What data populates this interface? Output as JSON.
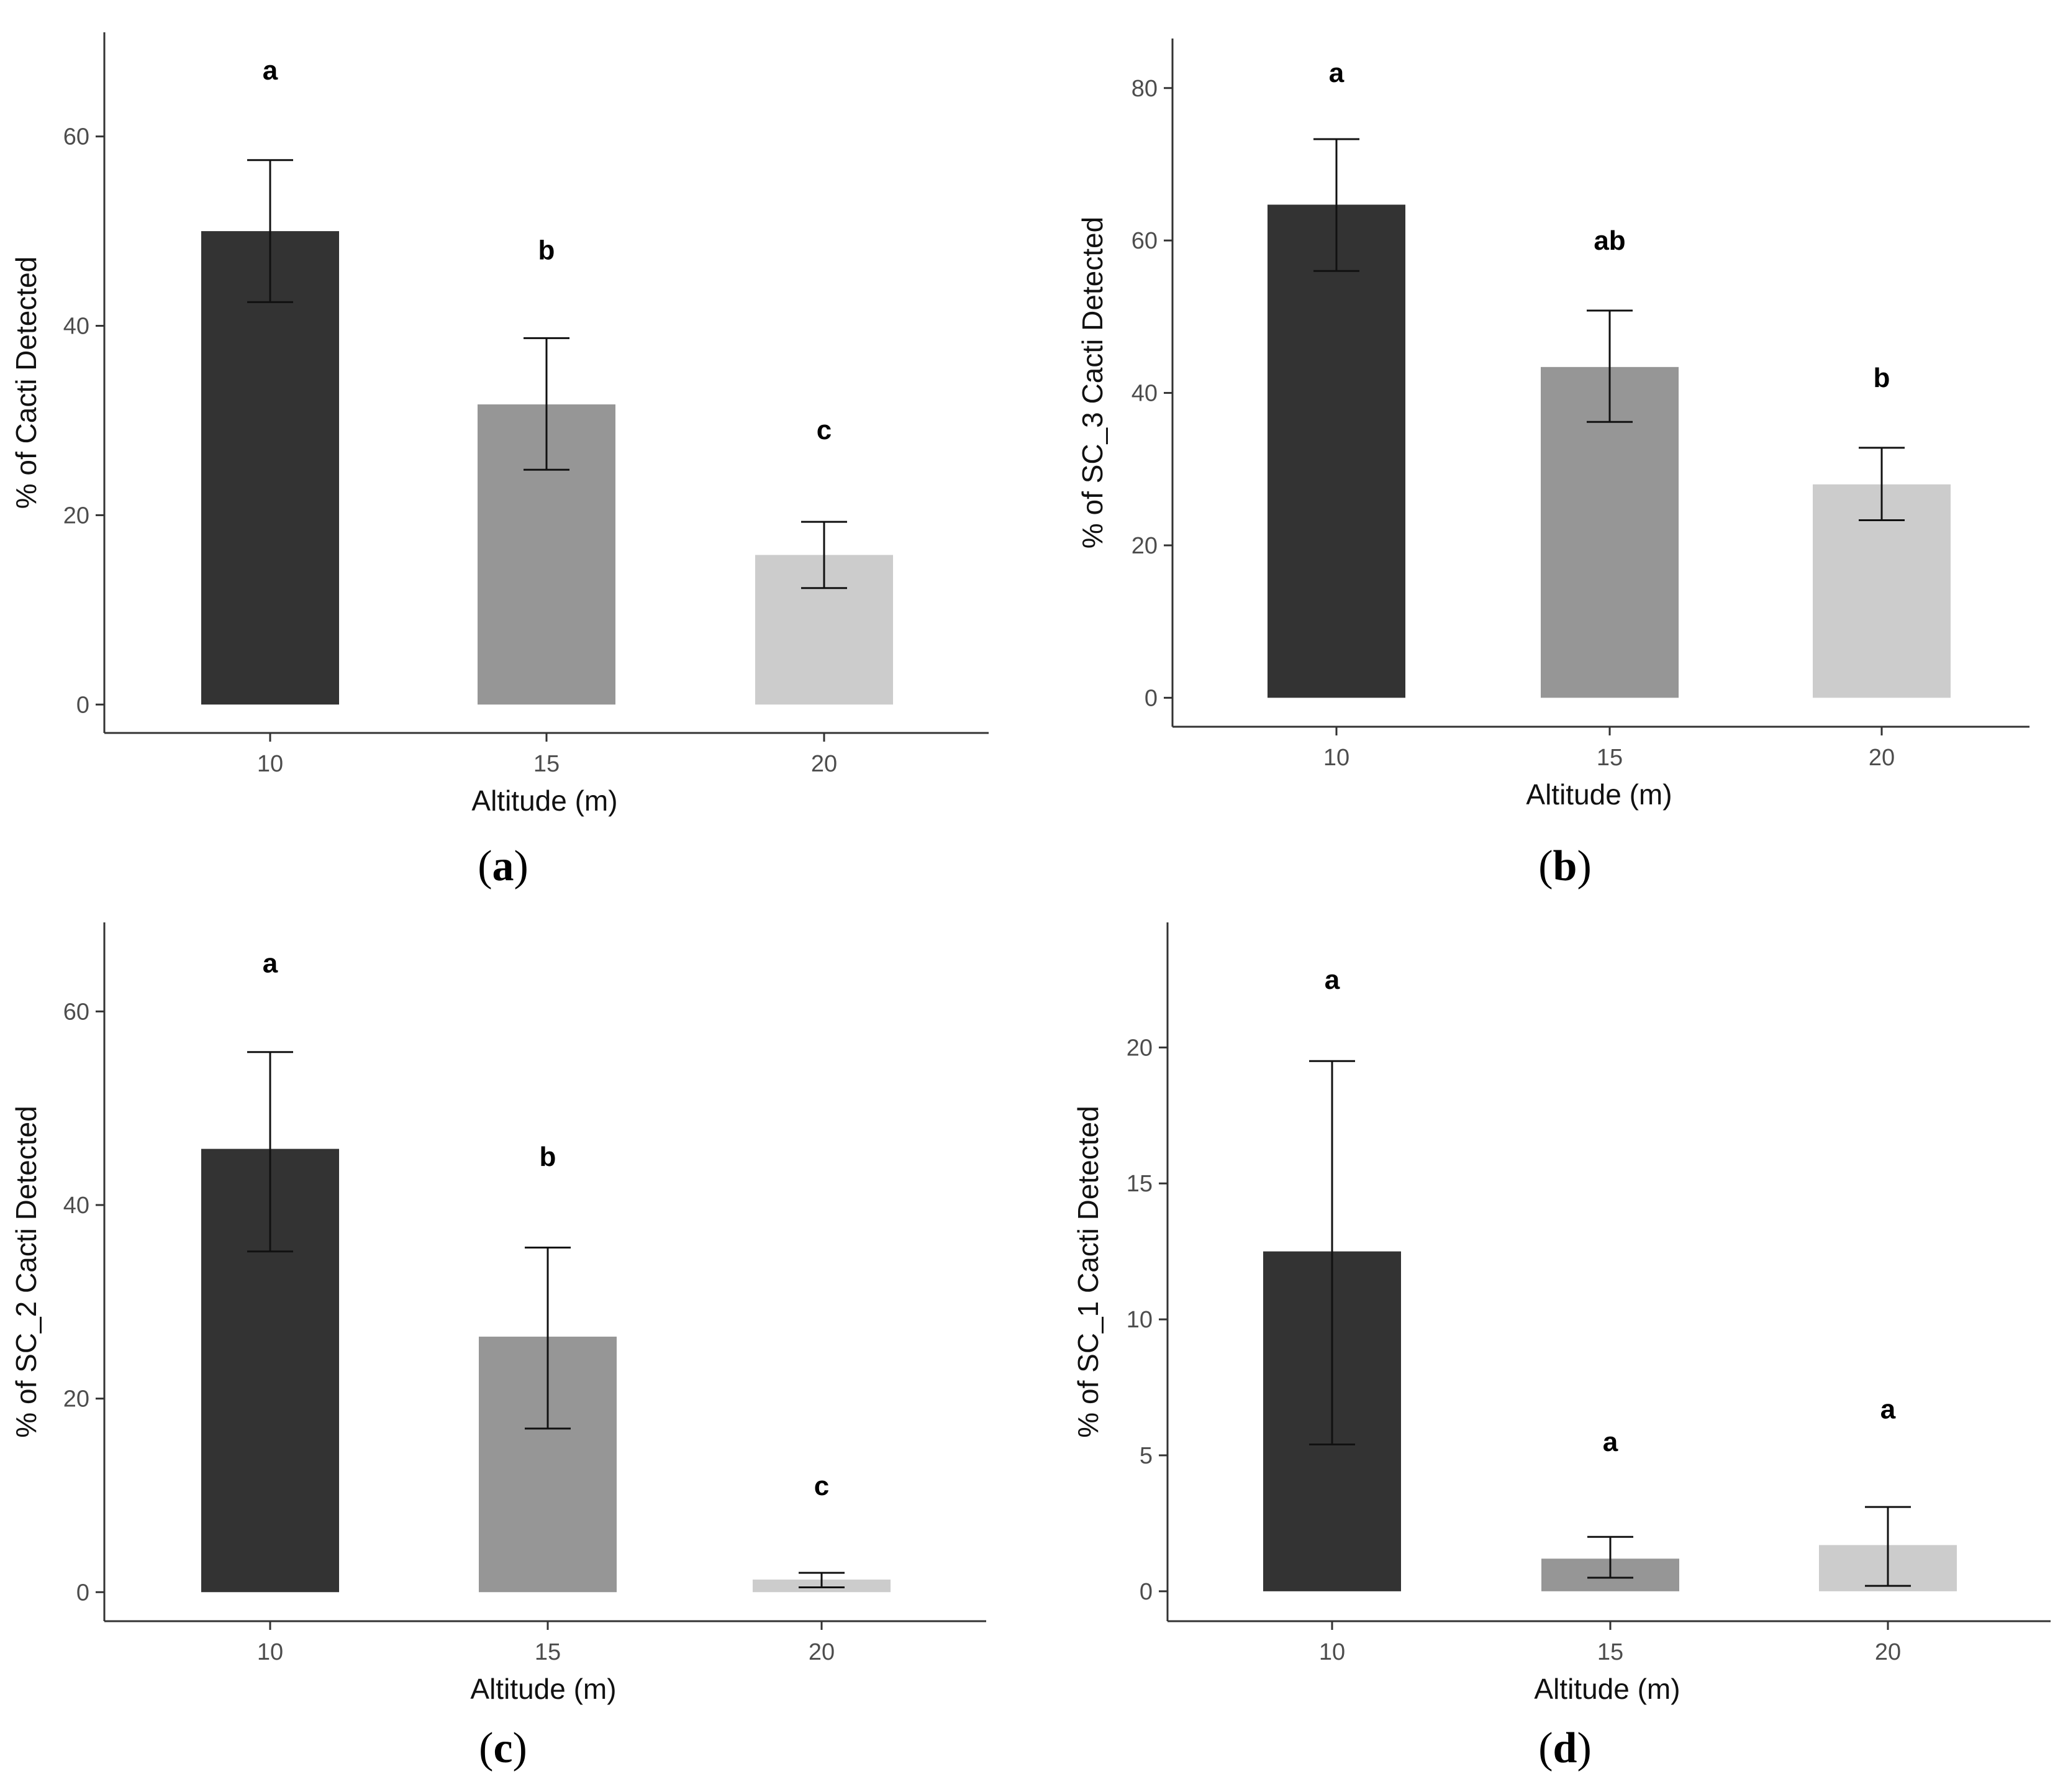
{
  "figure": {
    "panels": [
      {
        "caption_letter": "a",
        "caption_text": "(a)"
      },
      {
        "caption_letter": "b",
        "caption_text": "(b)"
      },
      {
        "caption_letter": "c",
        "caption_text": "(c)"
      },
      {
        "caption_letter": "d",
        "caption_text": "(d)"
      }
    ]
  },
  "chart_data": [
    {
      "type": "bar",
      "panel": "(a)",
      "title": "",
      "xlabel": "Altitude (m)",
      "ylabel": "% of Cacti Detected",
      "categories": [
        "10",
        "15",
        "20"
      ],
      "values": [
        50,
        31.7,
        15.8
      ],
      "error_low": [
        42.5,
        24.8,
        12.3
      ],
      "error_high": [
        57.5,
        38.7,
        19.3
      ],
      "significance": [
        "a",
        "b",
        "c"
      ],
      "significance_y": [
        67,
        48,
        29
      ],
      "bar_colors": [
        "#333333",
        "#969696",
        "#cccccc"
      ],
      "ylim": [
        -3,
        71
      ],
      "yticks": [
        0,
        20,
        40,
        60
      ],
      "grid": false
    },
    {
      "type": "bar",
      "panel": "(b)",
      "title": "",
      "xlabel": "Altitude (m)",
      "ylabel": "% of SC_3 Cacti Detected",
      "categories": [
        "10",
        "15",
        "20"
      ],
      "values": [
        64.7,
        43.4,
        28
      ],
      "error_low": [
        56,
        36.2,
        23.3
      ],
      "error_high": [
        73.3,
        50.8,
        32.8
      ],
      "significance": [
        "a",
        "ab",
        "b"
      ],
      "significance_y": [
        82,
        60,
        42
      ],
      "bar_colors": [
        "#333333",
        "#969696",
        "#cccccc"
      ],
      "ylim": [
        -3.8,
        86.5
      ],
      "yticks": [
        0,
        20,
        40,
        60,
        80
      ],
      "grid": false
    },
    {
      "type": "bar",
      "panel": "(c)",
      "title": "",
      "xlabel": "Altitude (m)",
      "ylabel": "% of SC_2 Cacti Detected",
      "categories": [
        "10",
        "15",
        "20"
      ],
      "values": [
        45.8,
        26.4,
        1.3
      ],
      "error_low": [
        35.2,
        16.9,
        0.5
      ],
      "error_high": [
        55.8,
        35.6,
        2
      ],
      "significance": [
        "a",
        "b",
        "c"
      ],
      "significance_y": [
        65,
        45,
        11
      ],
      "bar_colors": [
        "#333333",
        "#969696",
        "#cccccc"
      ],
      "ylim": [
        -3,
        69.2
      ],
      "yticks": [
        0,
        20,
        40,
        60
      ],
      "grid": false
    },
    {
      "type": "bar",
      "panel": "(d)",
      "title": "",
      "xlabel": "Altitude (m)",
      "ylabel": "% of SC_1 Cacti Detected",
      "categories": [
        "10",
        "15",
        "20"
      ],
      "values": [
        12.5,
        1.2,
        1.7
      ],
      "error_low": [
        5.4,
        0.5,
        0.2
      ],
      "error_high": [
        19.5,
        2,
        3.1
      ],
      "significance": [
        "a",
        "a",
        "a"
      ],
      "significance_y": [
        22.5,
        5.5,
        6.7
      ],
      "bar_colors": [
        "#333333",
        "#969696",
        "#cccccc"
      ],
      "ylim": [
        -1.1,
        24.6
      ],
      "yticks": [
        0,
        5,
        10,
        15,
        20
      ],
      "grid": false
    }
  ]
}
